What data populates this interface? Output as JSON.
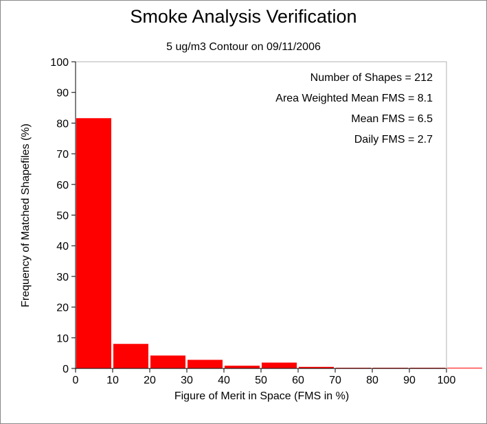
{
  "chart_data": {
    "type": "bar",
    "title": "Smoke Analysis Verification",
    "subtitle": "5 ug/m3 Contour on 09/11/2006",
    "xlabel": "Figure of Merit in Space (FMS in %)",
    "ylabel": "Frequency of Matched Shapefiles (%)",
    "xlim": [
      0,
      110
    ],
    "ylim": [
      0,
      100
    ],
    "xticks": [
      0,
      10,
      20,
      30,
      40,
      50,
      60,
      70,
      80,
      90,
      100
    ],
    "yticks": [
      0,
      10,
      20,
      30,
      40,
      50,
      60,
      70,
      80,
      90,
      100
    ],
    "bin_width": 10,
    "bins": [
      0,
      10,
      20,
      30,
      40,
      50,
      60,
      70,
      80,
      90,
      100
    ],
    "values": [
      81.6,
      8.0,
      4.2,
      2.8,
      0.9,
      1.9,
      0.5,
      0.1,
      0.1,
      0.1,
      0.1
    ],
    "bar_color": "#ff0000",
    "grid": false,
    "annotations": [
      "Number of Shapes = 212",
      "Area Weighted Mean FMS = 8.1",
      "Mean FMS = 6.5",
      "Daily FMS = 2.7"
    ]
  }
}
